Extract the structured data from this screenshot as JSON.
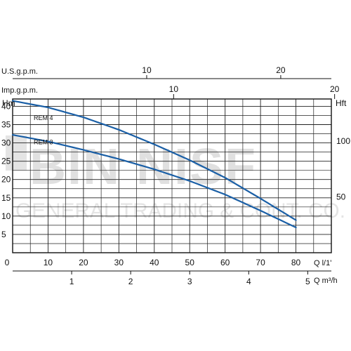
{
  "chart_data": {
    "type": "line",
    "x_unit_label": "Q l/1'",
    "x_ticks": [
      0,
      10,
      20,
      30,
      40,
      50,
      60,
      70,
      80
    ],
    "xlim": [
      0,
      90
    ],
    "y_left_label": "Hm",
    "y_left_ticks": [
      5,
      10,
      15,
      20,
      25,
      30,
      35,
      40
    ],
    "ylim": [
      0,
      42
    ],
    "y_right_label": "Hft",
    "y_right_ticks": [
      50,
      100
    ],
    "us_gpm_label": "U.S.g.p.m.",
    "us_gpm_ticks": [
      10,
      20
    ],
    "imp_gpm_label": "Imp.g.p.m.",
    "imp_gpm_ticks": [
      10,
      20
    ],
    "m3h_label": "Q m³/h",
    "m3h_ticks": [
      1,
      2,
      3,
      4,
      5
    ],
    "grid": true,
    "series": [
      {
        "name": "REM 4",
        "color": "#1a5fa6",
        "x": [
          0,
          10,
          20,
          30,
          40,
          50,
          60,
          70,
          80
        ],
        "y": [
          41.5,
          39.7,
          37.0,
          33.6,
          29.6,
          25.3,
          20.5,
          14.8,
          8.9
        ]
      },
      {
        "name": "REM 3",
        "color": "#1a5fa6",
        "x": [
          0,
          10,
          20,
          30,
          40,
          50,
          60,
          70,
          80
        ],
        "y": [
          32.2,
          30.4,
          28.1,
          25.6,
          22.8,
          19.6,
          15.9,
          11.5,
          6.9
        ]
      }
    ]
  },
  "watermark": {
    "line1": "BIN NISF",
    "line2": "GENERAL TRADING & CONT. CO."
  }
}
